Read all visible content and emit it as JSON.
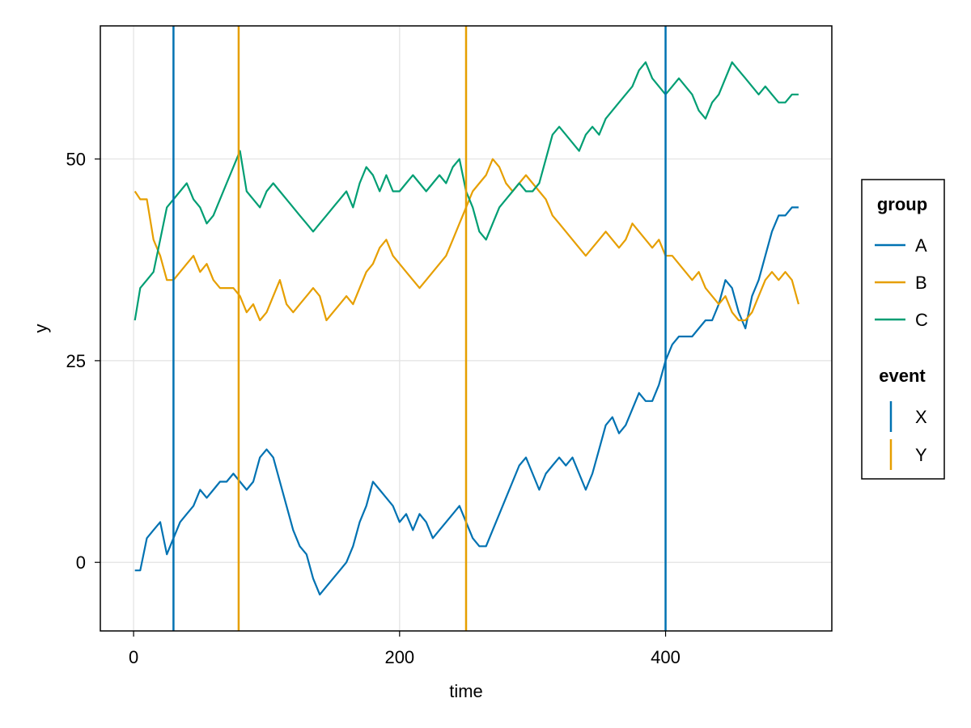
{
  "chart_data": {
    "type": "line",
    "title": "",
    "xlabel": "time",
    "ylabel": "y",
    "xlim": [
      -25,
      525
    ],
    "ylim": [
      -8.5,
      66.5
    ],
    "xticks": [
      0,
      200,
      400
    ],
    "yticks": [
      0,
      25,
      50
    ],
    "grid": true,
    "legend_position": "right",
    "series": [
      {
        "name": "A",
        "color": "#0072B2",
        "x": [
          1,
          5,
          10,
          15,
          20,
          25,
          30,
          35,
          40,
          45,
          50,
          55,
          60,
          65,
          70,
          75,
          80,
          85,
          90,
          95,
          100,
          105,
          110,
          115,
          120,
          125,
          130,
          135,
          140,
          145,
          150,
          155,
          160,
          165,
          170,
          175,
          180,
          185,
          190,
          195,
          200,
          205,
          210,
          215,
          220,
          225,
          230,
          235,
          240,
          245,
          250,
          255,
          260,
          265,
          270,
          275,
          280,
          285,
          290,
          295,
          300,
          305,
          310,
          315,
          320,
          325,
          330,
          335,
          340,
          345,
          350,
          355,
          360,
          365,
          370,
          375,
          380,
          385,
          390,
          395,
          400,
          405,
          410,
          415,
          420,
          425,
          430,
          435,
          440,
          445,
          450,
          455,
          460,
          465,
          470,
          475,
          480,
          485,
          490,
          495,
          500
        ],
        "values": [
          -1,
          -1,
          3,
          4,
          5,
          1,
          3,
          5,
          6,
          7,
          9,
          8,
          9,
          10,
          10,
          11,
          10,
          9,
          10,
          13,
          14,
          13,
          10,
          7,
          4,
          2,
          1,
          -2,
          -4,
          -3,
          -2,
          -1,
          0,
          2,
          5,
          7,
          10,
          9,
          8,
          7,
          5,
          6,
          4,
          6,
          5,
          3,
          4,
          5,
          6,
          7,
          5,
          3,
          2,
          2,
          4,
          6,
          8,
          10,
          12,
          13,
          11,
          9,
          11,
          12,
          13,
          12,
          13,
          11,
          9,
          11,
          14,
          17,
          18,
          16,
          17,
          19,
          21,
          20,
          20,
          22,
          25,
          27,
          28,
          28,
          28,
          29,
          30,
          30,
          32,
          35,
          34,
          31,
          29,
          33,
          35,
          38,
          41,
          43,
          43,
          44,
          44
        ]
      },
      {
        "name": "B",
        "color": "#E69F00",
        "x": [
          1,
          5,
          10,
          15,
          20,
          25,
          30,
          35,
          40,
          45,
          50,
          55,
          60,
          65,
          70,
          75,
          80,
          85,
          90,
          95,
          100,
          105,
          110,
          115,
          120,
          125,
          130,
          135,
          140,
          145,
          150,
          155,
          160,
          165,
          170,
          175,
          180,
          185,
          190,
          195,
          200,
          205,
          210,
          215,
          220,
          225,
          230,
          235,
          240,
          245,
          250,
          255,
          260,
          265,
          270,
          275,
          280,
          285,
          290,
          295,
          300,
          305,
          310,
          315,
          320,
          325,
          330,
          335,
          340,
          345,
          350,
          355,
          360,
          365,
          370,
          375,
          380,
          385,
          390,
          395,
          400,
          405,
          410,
          415,
          420,
          425,
          430,
          435,
          440,
          445,
          450,
          455,
          460,
          465,
          470,
          475,
          480,
          485,
          490,
          495,
          500
        ],
        "values": [
          46,
          45,
          45,
          40,
          38,
          35,
          35,
          36,
          37,
          38,
          36,
          37,
          35,
          34,
          34,
          34,
          33,
          31,
          32,
          30,
          31,
          33,
          35,
          32,
          31,
          32,
          33,
          34,
          33,
          30,
          31,
          32,
          33,
          32,
          34,
          36,
          37,
          39,
          40,
          38,
          37,
          36,
          35,
          34,
          35,
          36,
          37,
          38,
          40,
          42,
          44,
          46,
          47,
          48,
          50,
          49,
          47,
          46,
          47,
          48,
          47,
          46,
          45,
          43,
          42,
          41,
          40,
          39,
          38,
          39,
          40,
          41,
          40,
          39,
          40,
          42,
          41,
          40,
          39,
          40,
          38,
          38,
          37,
          36,
          35,
          36,
          34,
          33,
          32,
          33,
          31,
          30,
          30,
          31,
          33,
          35,
          36,
          35,
          36,
          35,
          32
        ]
      },
      {
        "name": "C",
        "color": "#009E73",
        "x": [
          1,
          5,
          10,
          15,
          20,
          25,
          30,
          35,
          40,
          45,
          50,
          55,
          60,
          65,
          70,
          75,
          80,
          85,
          90,
          95,
          100,
          105,
          110,
          115,
          120,
          125,
          130,
          135,
          140,
          145,
          150,
          155,
          160,
          165,
          170,
          175,
          180,
          185,
          190,
          195,
          200,
          205,
          210,
          215,
          220,
          225,
          230,
          235,
          240,
          245,
          250,
          255,
          260,
          265,
          270,
          275,
          280,
          285,
          290,
          295,
          300,
          305,
          310,
          315,
          320,
          325,
          330,
          335,
          340,
          345,
          350,
          355,
          360,
          365,
          370,
          375,
          380,
          385,
          390,
          395,
          400,
          405,
          410,
          415,
          420,
          425,
          430,
          435,
          440,
          445,
          450,
          455,
          460,
          465,
          470,
          475,
          480,
          485,
          490,
          495,
          500
        ],
        "values": [
          30,
          34,
          35,
          36,
          40,
          44,
          45,
          46,
          47,
          45,
          44,
          42,
          43,
          45,
          47,
          49,
          51,
          46,
          45,
          44,
          46,
          47,
          46,
          45,
          44,
          43,
          42,
          41,
          42,
          43,
          44,
          45,
          46,
          44,
          47,
          49,
          48,
          46,
          48,
          46,
          46,
          47,
          48,
          47,
          46,
          47,
          48,
          47,
          49,
          50,
          46,
          44,
          41,
          40,
          42,
          44,
          45,
          46,
          47,
          46,
          46,
          47,
          50,
          53,
          54,
          53,
          52,
          51,
          53,
          54,
          53,
          55,
          56,
          57,
          58,
          59,
          61,
          62,
          60,
          59,
          58,
          59,
          60,
          59,
          58,
          56,
          55,
          57,
          58,
          60,
          62,
          61,
          60,
          59,
          58,
          59,
          58,
          57,
          57,
          58,
          58
        ]
      }
    ],
    "events": [
      {
        "event": "X",
        "x": 30,
        "color": "#0072B2"
      },
      {
        "event": "Y",
        "x": 79,
        "color": "#E69F00"
      },
      {
        "event": "Y",
        "x": 250,
        "color": "#E69F00"
      },
      {
        "event": "X",
        "x": 400,
        "color": "#0072B2"
      }
    ],
    "legend": {
      "group_title": "group",
      "groups": [
        {
          "label": "A",
          "color": "#0072B2"
        },
        {
          "label": "B",
          "color": "#E69F00"
        },
        {
          "label": "C",
          "color": "#009E73"
        }
      ],
      "event_title": "event",
      "events": [
        {
          "label": "X",
          "color": "#0072B2"
        },
        {
          "label": "Y",
          "color": "#E69F00"
        }
      ]
    }
  }
}
